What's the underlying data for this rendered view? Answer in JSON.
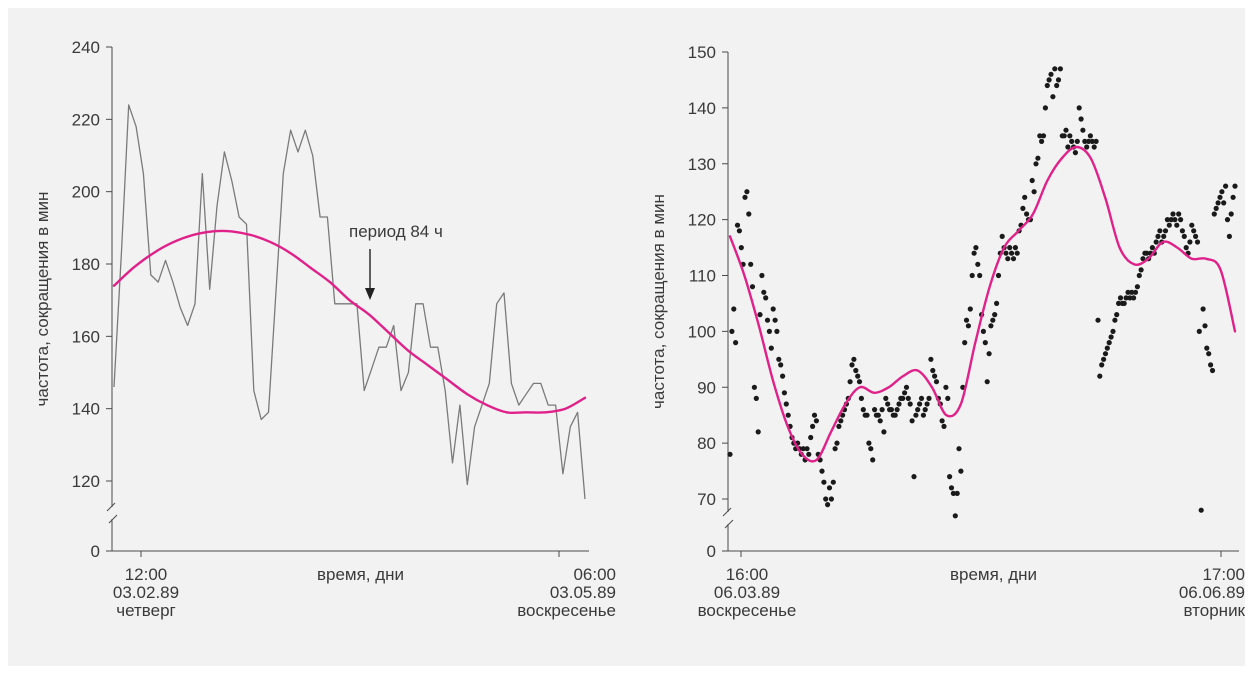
{
  "chart_data": [
    {
      "type": "line",
      "ylabel": "частота, сокращения в мин",
      "xlabel": "время, дни",
      "ylim": [
        0,
        240
      ],
      "y_ticks": [
        0,
        120,
        140,
        160,
        180,
        200,
        220,
        240
      ],
      "axis_break": true,
      "grid": false,
      "x_tick_labels": [
        {
          "time": "12:00",
          "date": "03.02.89",
          "day": "четверг"
        },
        {
          "time": "06:00",
          "date": "03.05.89",
          "day": "воскресенье"
        }
      ],
      "annotation": "период 84 ч",
      "series": [
        {
          "style": "jagged",
          "color": "#7a7a7a",
          "values": [
            146,
            183,
            224,
            218,
            205,
            177,
            175,
            181,
            175,
            168,
            163,
            169,
            205,
            173,
            196,
            211,
            203,
            193,
            191,
            145,
            137,
            139,
            172,
            205,
            217,
            211,
            217,
            210,
            193,
            193,
            169,
            169,
            169,
            169,
            145,
            151,
            157,
            157,
            163,
            145,
            150,
            169,
            169,
            157,
            157,
            145,
            125,
            141,
            119,
            135,
            141,
            147,
            169,
            172,
            147,
            141,
            144,
            147,
            147,
            141,
            141,
            122,
            135,
            139,
            115
          ]
        },
        {
          "style": "smooth-fit",
          "color": "#e0218a",
          "values": [
            174,
            179,
            183,
            186,
            188,
            189,
            189,
            188,
            186,
            183,
            179,
            175,
            170,
            166,
            161,
            156,
            152,
            148,
            144,
            141,
            139,
            139,
            139,
            140,
            143
          ]
        }
      ]
    },
    {
      "type": "scatter",
      "ylabel": "частота, сокращения в мин",
      "xlabel": "время, дни",
      "ylim": [
        0,
        150
      ],
      "y_ticks": [
        0,
        70,
        80,
        90,
        100,
        110,
        120,
        130,
        140,
        150
      ],
      "axis_break": true,
      "grid": false,
      "x_tick_labels": [
        {
          "time": "16:00",
          "date": "06.03.89",
          "day": "воскресенье"
        },
        {
          "time": "17:00",
          "date": "06.06.89",
          "day": "вторник"
        }
      ],
      "series": [
        {
          "style": "points",
          "color": "#1a1a1a",
          "values": [
            78,
            100,
            104,
            98,
            119,
            118,
            115,
            112,
            124,
            125,
            121,
            112,
            108,
            90,
            88,
            82,
            103,
            110,
            107,
            106,
            102,
            100,
            97,
            104,
            102,
            100,
            95,
            94,
            92,
            89,
            87,
            85,
            83,
            81,
            80,
            79,
            80,
            79,
            78,
            79,
            77,
            79,
            78,
            81,
            83,
            85,
            84,
            78,
            77,
            75,
            73,
            70,
            69,
            72,
            70,
            73,
            79,
            80,
            83,
            84,
            85,
            86,
            87,
            88,
            91,
            94,
            95,
            93,
            92,
            91,
            88,
            86,
            85,
            85,
            80,
            79,
            77,
            86,
            85,
            85,
            84,
            86,
            82,
            88,
            87,
            86,
            86,
            85,
            85,
            86,
            87,
            88,
            88,
            89,
            90,
            88,
            87,
            84,
            74,
            85,
            86,
            87,
            88,
            85,
            86,
            87,
            88,
            95,
            93,
            92,
            91,
            88,
            87,
            84,
            83,
            90,
            88,
            74,
            72,
            71,
            67,
            71,
            79,
            75,
            90,
            98,
            102,
            101,
            104,
            110,
            114,
            115,
            112,
            110,
            103,
            100,
            98,
            91,
            96,
            101,
            102,
            103,
            105,
            110,
            114,
            117,
            115,
            114,
            113,
            115,
            114,
            113,
            115,
            114,
            118,
            119,
            122,
            124,
            121,
            120,
            120,
            127,
            125,
            130,
            131,
            135,
            134,
            135,
            140,
            144,
            145,
            146,
            142,
            147,
            144,
            145,
            147,
            135,
            135,
            136,
            133,
            135,
            134,
            133,
            132,
            134,
            140,
            138,
            136,
            134,
            133,
            134,
            135,
            134,
            133,
            134,
            102,
            92,
            94,
            95,
            96,
            97,
            98,
            99,
            100,
            102,
            103,
            105,
            106,
            105,
            105,
            106,
            107,
            106,
            107,
            106,
            107,
            108,
            110,
            111,
            113,
            114,
            114,
            113,
            114,
            115,
            114,
            116,
            117,
            118,
            116,
            117,
            118,
            120,
            119,
            120,
            121,
            120,
            119,
            121,
            120,
            118,
            117,
            115,
            114,
            116,
            119,
            118,
            117,
            116,
            100,
            68,
            104,
            101,
            97,
            96,
            94,
            93,
            121,
            122,
            123,
            124,
            125,
            123,
            126,
            120,
            117,
            121,
            124,
            126
          ]
        },
        {
          "style": "smooth-fit",
          "color": "#e0218a",
          "values": [
            117,
            110,
            101,
            91,
            83,
            78,
            77,
            82,
            87,
            90,
            89,
            90,
            92,
            93,
            90,
            85,
            87,
            98,
            108,
            115,
            118,
            121,
            127,
            131,
            133,
            131,
            124,
            115,
            112,
            113,
            116,
            115,
            113,
            113,
            111,
            100
          ]
        }
      ]
    }
  ]
}
